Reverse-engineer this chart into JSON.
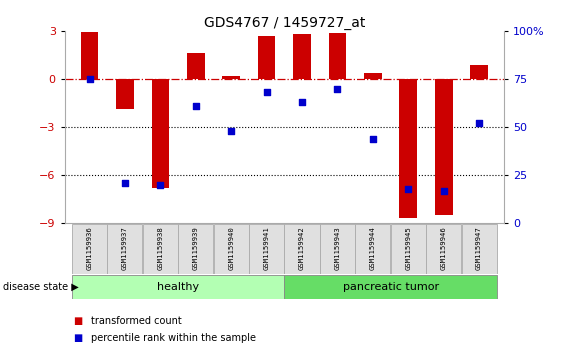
{
  "title": "GDS4767 / 1459727_at",
  "samples": [
    "GSM1159936",
    "GSM1159937",
    "GSM1159938",
    "GSM1159939",
    "GSM1159940",
    "GSM1159941",
    "GSM1159942",
    "GSM1159943",
    "GSM1159944",
    "GSM1159945",
    "GSM1159946",
    "GSM1159947"
  ],
  "bar_values": [
    2.9,
    -1.9,
    -6.8,
    1.6,
    0.2,
    2.7,
    2.8,
    2.85,
    0.4,
    -8.7,
    -8.5,
    0.9
  ],
  "dot_values": [
    75,
    21,
    20,
    61,
    48,
    68,
    63,
    70,
    44,
    18,
    17,
    52
  ],
  "bar_color": "#cc0000",
  "dot_color": "#0000cc",
  "ylim_left": [
    -9,
    3
  ],
  "ylim_right": [
    0,
    100
  ],
  "yticks_left": [
    -9,
    -6,
    -3,
    0,
    3
  ],
  "yticks_right": [
    0,
    25,
    50,
    75,
    100
  ],
  "ytick_right_labels": [
    "0",
    "25",
    "50",
    "75",
    "100%"
  ],
  "hline_y": 0,
  "dotted_lines": [
    -3,
    -6
  ],
  "healthy_count": 6,
  "tumor_count": 6,
  "healthy_label": "healthy",
  "tumor_label": "pancreatic tumor",
  "disease_state_label": "disease state",
  "legend_bar_label": "transformed count",
  "legend_dot_label": "percentile rank within the sample",
  "bg_color": "#ffffff",
  "plot_bg_color": "#ffffff",
  "healthy_fill": "#b3ffb3",
  "tumor_fill": "#66dd66",
  "bar_width": 0.5
}
